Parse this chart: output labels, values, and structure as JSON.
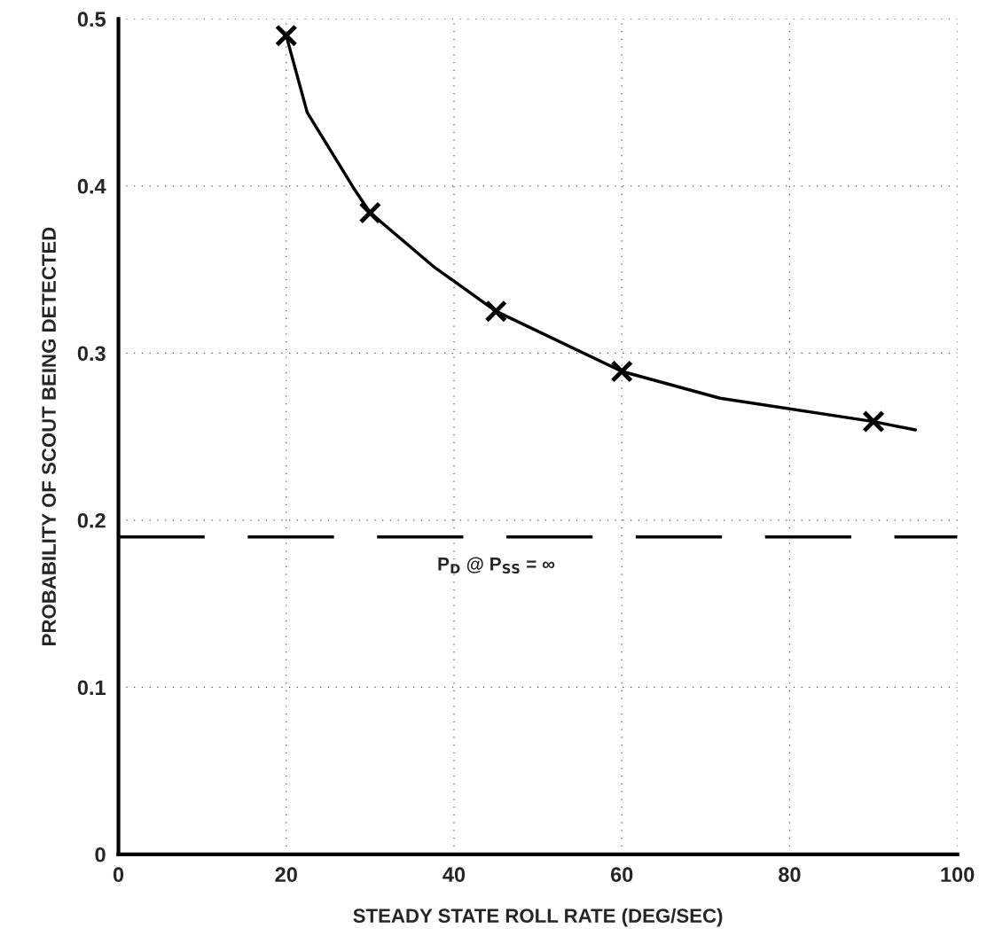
{
  "chart_data": {
    "type": "scatter",
    "xlabel": "STEADY STATE ROLL RATE (DEG/SEC)",
    "ylabel": "PROBABILITY OF SCOUT BEING DETECTED",
    "xlim": [
      0,
      100
    ],
    "ylim": [
      0,
      0.5
    ],
    "xticks": [
      0,
      20,
      40,
      60,
      80,
      100
    ],
    "yticks": [
      0,
      0.1,
      0.2,
      0.3,
      0.4,
      0.5
    ],
    "grid": true,
    "series": [
      {
        "marker": "cross",
        "color": "#000000",
        "x": [
          20,
          30,
          45,
          60,
          90
        ],
        "values": [
          0.49,
          0.384,
          0.325,
          0.289,
          0.259
        ]
      },
      {
        "type": "line",
        "color": "#000000",
        "line_style": "solid",
        "x": [
          20,
          22.5,
          28,
          30,
          37.5,
          45,
          60,
          71.7,
          90,
          95
        ],
        "values": [
          0.49,
          0.444,
          0.399,
          0.384,
          0.352,
          0.325,
          0.289,
          0.273,
          0.259,
          0.254
        ]
      }
    ],
    "ref_lines": [
      {
        "axis": "y",
        "value": 0.19,
        "label": "P$_{D}$ @ P$_{SS}$ = ∞",
        "color": "#000000",
        "line_style": "dashed"
      }
    ]
  }
}
